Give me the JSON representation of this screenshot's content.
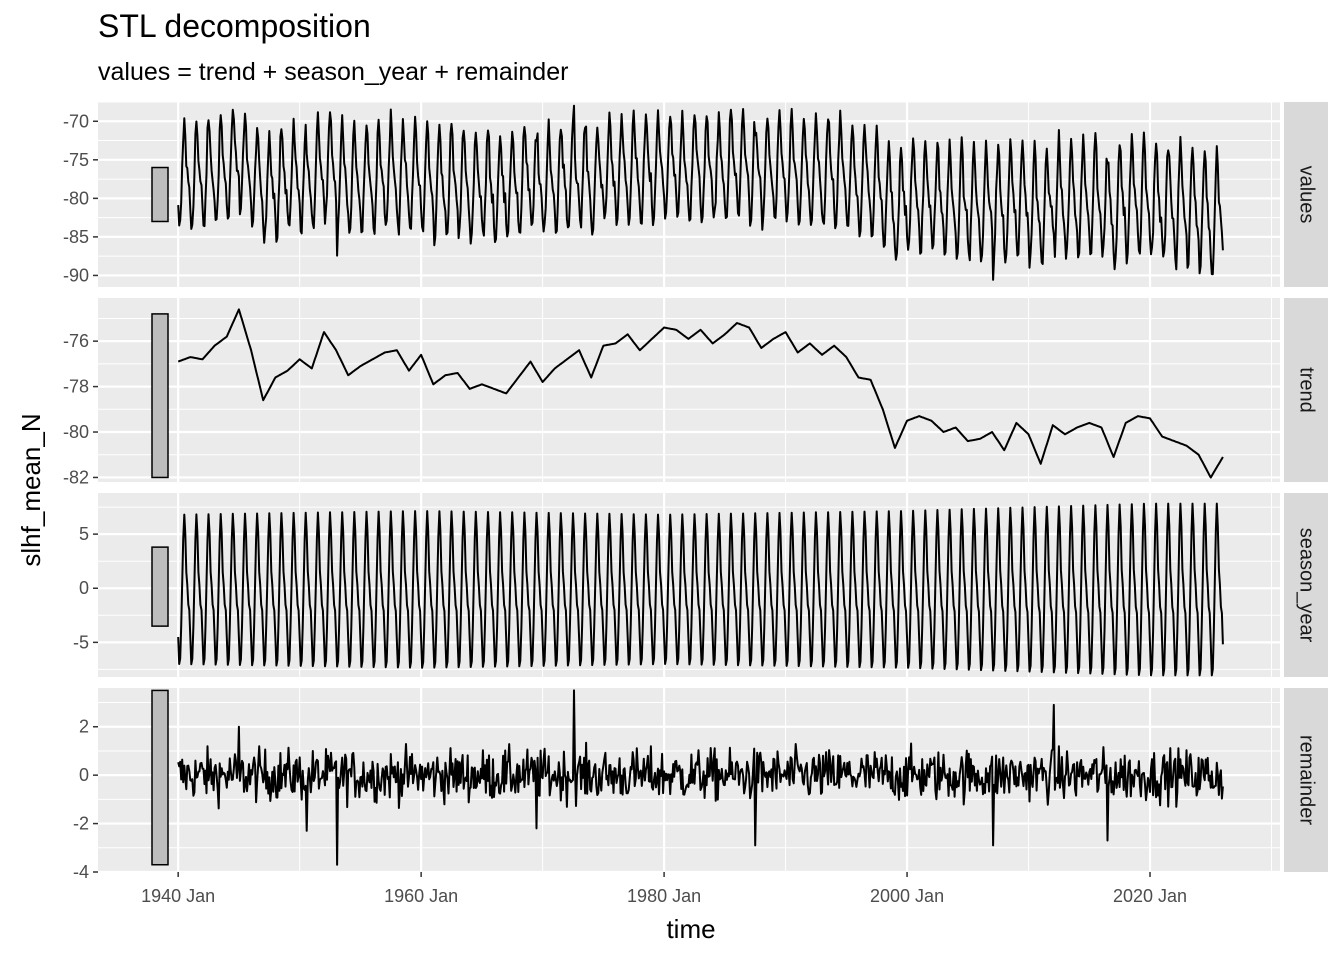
{
  "chart_data": {
    "type": "line",
    "title": "STL decomposition",
    "subtitle": "values = trend + season_year + remainder",
    "xlabel": "time",
    "ylabel": "slhf_mean_N",
    "x_range": [
      "1940 Jan",
      "2026 Jan"
    ],
    "x_ticks": [
      "1940 Jan",
      "1960 Jan",
      "1980 Jan",
      "2000 Jan",
      "2020 Jan"
    ],
    "grid": true,
    "series_color": "#000000",
    "panels": [
      {
        "name": "values",
        "ylim": [
          -91.5,
          -67.5
        ],
        "yticks": [
          -70,
          -75,
          -80,
          -85,
          -90
        ],
        "scale_bar": [
          -83,
          -76
        ],
        "anchors": [
          {
            "x": "1940 Jan",
            "y": -80.5
          },
          {
            "x": "1945 Jan",
            "y": -80
          },
          {
            "x": "1950 Jan",
            "y": -79
          },
          {
            "x": "1955 Jan",
            "y": -79.5
          },
          {
            "x": "1960 Jan",
            "y": -78.5
          },
          {
            "x": "1965 Jan",
            "y": -79.5
          },
          {
            "x": "1970 Jan",
            "y": -79
          },
          {
            "x": "1975 Jan",
            "y": -77.5
          },
          {
            "x": "1980 Jan",
            "y": -76.5
          },
          {
            "x": "1985 Jan",
            "y": -76.5
          },
          {
            "x": "1990 Jan",
            "y": -77.5
          },
          {
            "x": "1995 Jan",
            "y": -77.5
          },
          {
            "x": "1998 Jan",
            "y": -80.5
          },
          {
            "x": "2000 Jan",
            "y": -80
          },
          {
            "x": "2005 Jan",
            "y": -81
          },
          {
            "x": "2010 Jan",
            "y": -81.5
          },
          {
            "x": "2015 Jan",
            "y": -81
          },
          {
            "x": "2020 Jan",
            "y": -81
          },
          {
            "x": "2025 Jan",
            "y": -82
          }
        ]
      },
      {
        "name": "trend",
        "ylim": [
          -82.2,
          -74.1
        ],
        "yticks": [
          -76,
          -78,
          -80,
          -82
        ],
        "scale_bar": [
          -82,
          -74.8
        ],
        "points": [
          {
            "x": "1940 Jan",
            "y": -76.9
          },
          {
            "x": "1941 Jan",
            "y": -76.7
          },
          {
            "x": "1942 Jan",
            "y": -76.8
          },
          {
            "x": "1943 Jan",
            "y": -76.2
          },
          {
            "x": "1944 Jan",
            "y": -75.8
          },
          {
            "x": "1945 Jan",
            "y": -74.6
          },
          {
            "x": "1946 Jan",
            "y": -76.4
          },
          {
            "x": "1947 Jan",
            "y": -78.6
          },
          {
            "x": "1948 Jan",
            "y": -77.6
          },
          {
            "x": "1949 Jan",
            "y": -77.3
          },
          {
            "x": "1950 Jan",
            "y": -76.8
          },
          {
            "x": "1951 Jan",
            "y": -77.2
          },
          {
            "x": "1952 Jan",
            "y": -75.6
          },
          {
            "x": "1953 Jan",
            "y": -76.4
          },
          {
            "x": "1954 Jan",
            "y": -77.5
          },
          {
            "x": "1955 Jan",
            "y": -77.1
          },
          {
            "x": "1956 Jan",
            "y": -76.8
          },
          {
            "x": "1957 Jan",
            "y": -76.5
          },
          {
            "x": "1958 Jan",
            "y": -76.4
          },
          {
            "x": "1959 Jan",
            "y": -77.3
          },
          {
            "x": "1960 Jan",
            "y": -76.6
          },
          {
            "x": "1961 Jan",
            "y": -77.9
          },
          {
            "x": "1962 Jan",
            "y": -77.5
          },
          {
            "x": "1963 Jan",
            "y": -77.4
          },
          {
            "x": "1964 Jan",
            "y": -78.1
          },
          {
            "x": "1965 Jan",
            "y": -77.9
          },
          {
            "x": "1966 Jan",
            "y": -78.1
          },
          {
            "x": "1967 Jan",
            "y": -78.3
          },
          {
            "x": "1968 Jan",
            "y": -77.6
          },
          {
            "x": "1969 Jan",
            "y": -76.9
          },
          {
            "x": "1970 Jan",
            "y": -77.8
          },
          {
            "x": "1971 Jan",
            "y": -77.2
          },
          {
            "x": "1972 Jan",
            "y": -76.8
          },
          {
            "x": "1973 Jan",
            "y": -76.4
          },
          {
            "x": "1974 Jan",
            "y": -77.6
          },
          {
            "x": "1975 Jan",
            "y": -76.2
          },
          {
            "x": "1976 Jan",
            "y": -76.1
          },
          {
            "x": "1977 Jan",
            "y": -75.7
          },
          {
            "x": "1978 Jan",
            "y": -76.4
          },
          {
            "x": "1979 Jan",
            "y": -75.9
          },
          {
            "x": "1980 Jan",
            "y": -75.4
          },
          {
            "x": "1981 Jan",
            "y": -75.5
          },
          {
            "x": "1982 Jan",
            "y": -75.9
          },
          {
            "x": "1983 Jan",
            "y": -75.5
          },
          {
            "x": "1984 Jan",
            "y": -76.1
          },
          {
            "x": "1985 Jan",
            "y": -75.7
          },
          {
            "x": "1986 Jan",
            "y": -75.2
          },
          {
            "x": "1987 Jan",
            "y": -75.4
          },
          {
            "x": "1988 Jan",
            "y": -76.3
          },
          {
            "x": "1989 Jan",
            "y": -75.9
          },
          {
            "x": "1990 Jan",
            "y": -75.6
          },
          {
            "x": "1991 Jan",
            "y": -76.5
          },
          {
            "x": "1992 Jan",
            "y": -76.1
          },
          {
            "x": "1993 Jan",
            "y": -76.6
          },
          {
            "x": "1994 Jan",
            "y": -76.2
          },
          {
            "x": "1995 Jan",
            "y": -76.7
          },
          {
            "x": "1996 Jan",
            "y": -77.6
          },
          {
            "x": "1997 Jan",
            "y": -77.7
          },
          {
            "x": "1998 Jan",
            "y": -79.0
          },
          {
            "x": "1999 Jan",
            "y": -80.7
          },
          {
            "x": "2000 Jan",
            "y": -79.5
          },
          {
            "x": "2001 Jan",
            "y": -79.3
          },
          {
            "x": "2002 Jan",
            "y": -79.5
          },
          {
            "x": "2003 Jan",
            "y": -80.0
          },
          {
            "x": "2004 Jan",
            "y": -79.8
          },
          {
            "x": "2005 Jan",
            "y": -80.4
          },
          {
            "x": "2006 Jan",
            "y": -80.3
          },
          {
            "x": "2007 Jan",
            "y": -80.0
          },
          {
            "x": "2008 Jan",
            "y": -80.8
          },
          {
            "x": "2009 Jan",
            "y": -79.6
          },
          {
            "x": "2010 Jan",
            "y": -80.1
          },
          {
            "x": "2011 Jan",
            "y": -81.4
          },
          {
            "x": "2012 Jan",
            "y": -79.7
          },
          {
            "x": "2013 Jan",
            "y": -80.1
          },
          {
            "x": "2014 Jan",
            "y": -79.8
          },
          {
            "x": "2015 Jan",
            "y": -79.6
          },
          {
            "x": "2016 Jan",
            "y": -79.8
          },
          {
            "x": "2017 Jan",
            "y": -81.1
          },
          {
            "x": "2018 Jan",
            "y": -79.6
          },
          {
            "x": "2019 Jan",
            "y": -79.3
          },
          {
            "x": "2020 Jan",
            "y": -79.4
          },
          {
            "x": "2021 Jan",
            "y": -80.2
          },
          {
            "x": "2022 Jan",
            "y": -80.4
          },
          {
            "x": "2023 Jan",
            "y": -80.6
          },
          {
            "x": "2024 Jan",
            "y": -81.0
          },
          {
            "x": "2025 Jan",
            "y": -82.0
          },
          {
            "x": "2026 Jan",
            "y": -81.1
          }
        ]
      },
      {
        "name": "season_year",
        "ylim": [
          -8.2,
          8.8
        ],
        "yticks": [
          5,
          0,
          -5
        ],
        "scale_bar": [
          -3.5,
          3.8
        ],
        "seasonal_pattern": [
          -4.5,
          -7.0,
          -6.5,
          -3.5,
          0.5,
          4.5,
          6.8,
          5.0,
          1.5,
          0.3,
          -1.5,
          -2.0
        ],
        "amplitude": [
          {
            "x": "1940 Jan",
            "y": 1.0
          },
          {
            "x": "1960 Jan",
            "y": 1.05
          },
          {
            "x": "1980 Jan",
            "y": 1.0
          },
          {
            "x": "2000 Jan",
            "y": 1.05
          },
          {
            "x": "2020 Jan",
            "y": 1.15
          },
          {
            "x": "2026 Jan",
            "y": 1.15
          }
        ]
      },
      {
        "name": "remainder",
        "ylim": [
          -4.0,
          3.6
        ],
        "yticks": [
          2,
          0,
          -2,
          -4
        ],
        "scale_bar": [
          -3.7,
          3.5
        ],
        "spikes": [
          {
            "x": "1945 Jan",
            "y": 2.0
          },
          {
            "x": "1953 Feb",
            "y": -3.7
          },
          {
            "x": "1972 Aug",
            "y": 3.5
          },
          {
            "x": "1987 Jul",
            "y": -2.9
          },
          {
            "x": "2007 Feb",
            "y": -2.9
          },
          {
            "x": "2012 Feb",
            "y": 2.9
          },
          {
            "x": "2016 Jul",
            "y": -2.7
          },
          {
            "x": "1969 Jul",
            "y": -2.2
          },
          {
            "x": "1950 Aug",
            "y": -2.3
          }
        ]
      }
    ]
  }
}
